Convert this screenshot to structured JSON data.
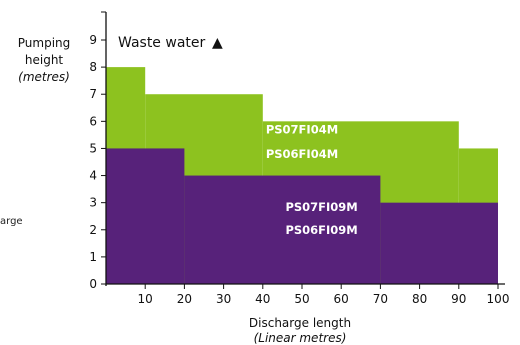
{
  "chart_data": {
    "type": "area",
    "ylabel": [
      "Pumping",
      "height"
    ],
    "ylabel_unit": "(metres)",
    "xlabel": "Discharge length",
    "xlabel_unit": "(Linear metres)",
    "xlim": [
      0,
      100
    ],
    "ylim": [
      0,
      9
    ],
    "xticks": [
      "10",
      "20",
      "30",
      "40",
      "50",
      "60",
      "70",
      "80",
      "90",
      "100"
    ],
    "yticks": [
      "0",
      "1",
      "2",
      "3",
      "4",
      "5",
      "6",
      "7",
      "8",
      "9"
    ],
    "legend": "Waste water",
    "legend_marker": "▲",
    "side_note": "arge",
    "series": [
      {
        "name_lines": [
          "PS07FI04M",
          "PS06FI04M"
        ],
        "color": "#8dc21f",
        "steps": [
          {
            "x_start": 0,
            "x_end": 10,
            "height": 8
          },
          {
            "x_start": 10,
            "x_end": 40,
            "height": 7
          },
          {
            "x_start": 40,
            "x_end": 90,
            "height": 6
          },
          {
            "x_start": 90,
            "x_end": 100,
            "height": 5
          }
        ]
      },
      {
        "name_lines": [
          "PS07FI09M",
          "PS06FI09M"
        ],
        "color": "#57227a",
        "steps": [
          {
            "x_start": 0,
            "x_end": 20,
            "height": 5
          },
          {
            "x_start": 20,
            "x_end": 70,
            "height": 4
          },
          {
            "x_start": 70,
            "x_end": 100,
            "height": 3
          }
        ]
      }
    ]
  }
}
